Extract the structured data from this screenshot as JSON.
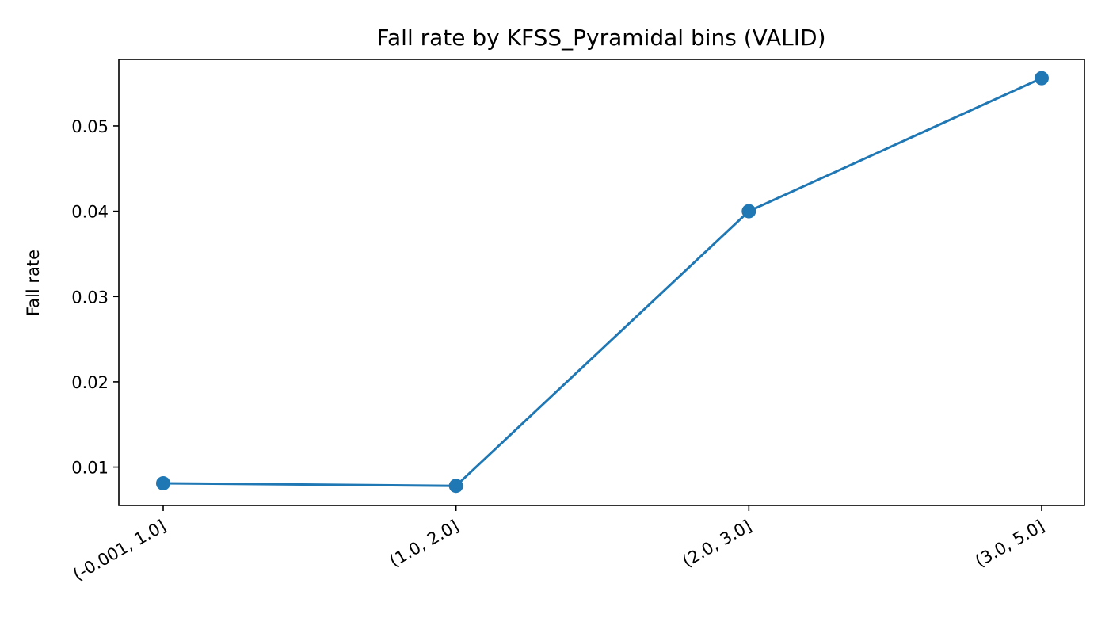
{
  "chart_data": {
    "type": "line",
    "title": "Fall rate by KFSS_Pyramidal bins (VALID)",
    "xlabel": "",
    "ylabel": "Fall rate",
    "categories": [
      "(-0.001, 1.0]",
      "(1.0, 2.0]",
      "(2.0, 3.0]",
      "(3.0, 5.0]"
    ],
    "series": [
      {
        "values": [
          0.0081,
          0.0078,
          0.04,
          0.0556
        ],
        "color": "#1f77b4",
        "marker": "circle"
      }
    ],
    "ylim": [
      0.0055,
      0.0578
    ],
    "yticks": [
      0.01,
      0.02,
      0.03,
      0.04,
      0.05
    ],
    "ytick_labels": [
      "0.01",
      "0.02",
      "0.03",
      "0.04",
      "0.05"
    ],
    "grid": false,
    "legend": "none"
  }
}
